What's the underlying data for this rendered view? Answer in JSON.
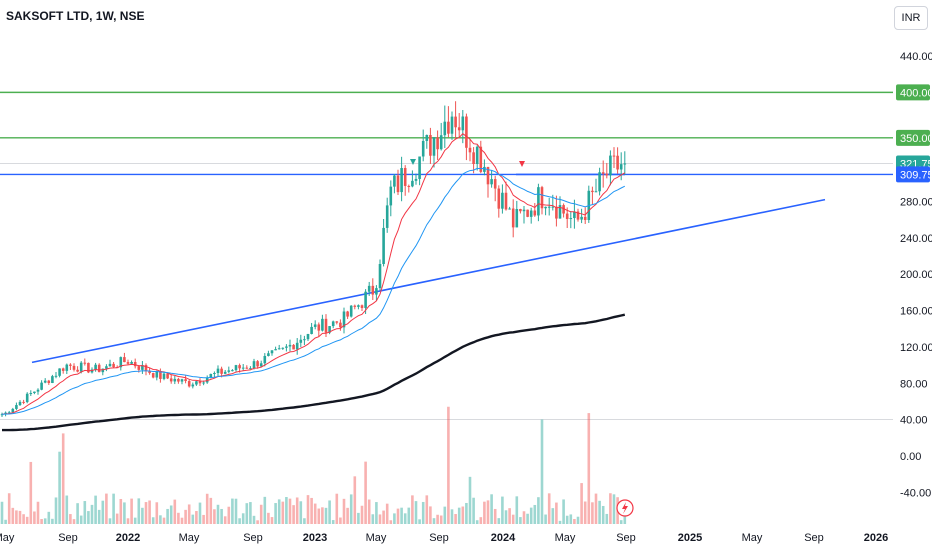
{
  "header": {
    "title": "SAKSOFT LTD, 1W, NSE",
    "currency": "INR"
  },
  "chart_data": {
    "type": "candlestick",
    "title": "SAKSOFT LTD, 1W, NSE",
    "y_axis": {
      "ticks": [
        "440.00",
        "400.00",
        "350.00",
        "321.75",
        "309.75",
        "280.00",
        "240.00",
        "200.00",
        "160.00",
        "120.00",
        "80.00",
        "40.00",
        "0.00",
        "-40.00"
      ],
      "ylim": [
        -50,
        460
      ]
    },
    "x_axis": {
      "ticks": [
        "May",
        "Sep",
        "2022",
        "May",
        "Sep",
        "2023",
        "May",
        "Sep",
        "2024",
        "May",
        "Sep",
        "2025",
        "May",
        "Sep",
        "2026"
      ]
    },
    "price_badges": [
      {
        "label": "400.00",
        "color": "#4caf50",
        "value": 400
      },
      {
        "label": "350.00",
        "color": "#4caf50",
        "value": 350
      },
      {
        "label": "321.75",
        "color": "#26a69a",
        "value": 321.75
      },
      {
        "label": "309.75",
        "color": "#2962ff",
        "value": 309.75
      }
    ],
    "horizontal_lines": [
      {
        "value": 400,
        "color": "#4caf50"
      },
      {
        "value": 350,
        "color": "#4caf50"
      },
      {
        "value": 309.75,
        "color": "#2962ff"
      }
    ],
    "trendlines": [
      {
        "from": [
          "2021-05-07",
          103
        ],
        "to": [
          "2021-09-03",
          118
        ],
        "color": "#2962ff",
        "note": "segment"
      },
      {
        "from": [
          "2021-06-01",
          103
        ],
        "to": [
          "2025-08-15",
          282
        ],
        "color": "#2962ff"
      }
    ],
    "last_price": 321.75,
    "candles_summary": [
      {
        "date": "2021-05",
        "close": 46
      },
      {
        "date": "2021-07",
        "close": 72
      },
      {
        "date": "2021-09",
        "close": 100
      },
      {
        "date": "2021-11",
        "close": 95
      },
      {
        "date": "2022-01",
        "close": 105
      },
      {
        "date": "2022-03",
        "close": 88
      },
      {
        "date": "2022-05",
        "close": 80
      },
      {
        "date": "2022-07",
        "close": 92
      },
      {
        "date": "2022-09",
        "close": 100
      },
      {
        "date": "2022-11",
        "close": 115
      },
      {
        "date": "2023-01",
        "close": 140
      },
      {
        "date": "2023-03",
        "close": 150
      },
      {
        "date": "2023-05",
        "close": 185
      },
      {
        "date": "2023-06",
        "close": 290
      },
      {
        "date": "2023-08",
        "close": 330
      },
      {
        "date": "2023-10",
        "close": 380
      },
      {
        "date": "2023-12",
        "close": 325
      },
      {
        "date": "2024-02",
        "close": 255
      },
      {
        "date": "2024-04",
        "close": 290
      },
      {
        "date": "2024-06",
        "close": 255
      },
      {
        "date": "2024-08",
        "close": 310
      },
      {
        "date": "2024-09",
        "close": 321.75
      }
    ],
    "series": [
      {
        "name": "",
        "type": "ema",
        "color": "#f23645"
      },
      {
        "name": "",
        "type": "ema",
        "color": "#2196f3"
      },
      {
        "name": "",
        "type": "ema",
        "color": "#131722"
      },
      {
        "name": "",
        "type": "volume",
        "colors": [
          "#26a69a",
          "#ef5350"
        ]
      }
    ]
  }
}
